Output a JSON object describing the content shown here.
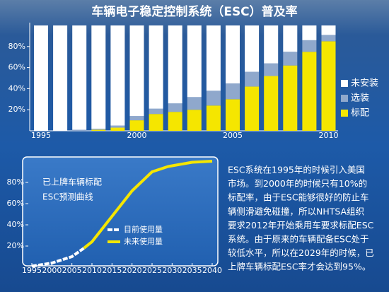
{
  "chart_data": [
    {
      "type": "bar",
      "stacked": true,
      "title": "车辆电子稳定控制系统（ESC）普及率",
      "categories": [
        "1995",
        null,
        null,
        null,
        null,
        "2000",
        null,
        null,
        null,
        null,
        "2005",
        null,
        null,
        null,
        null,
        "2010"
      ],
      "series": [
        {
          "name": "标配",
          "color": "#f5e600",
          "values": [
            0,
            0,
            0,
            1,
            3,
            10,
            16,
            18,
            20,
            24,
            30,
            42,
            52,
            62,
            75,
            85
          ]
        },
        {
          "name": "选装",
          "color": "#8fa8cc",
          "values": [
            0,
            0,
            1,
            1,
            2,
            4,
            5,
            8,
            12,
            14,
            15,
            14,
            12,
            13,
            11,
            6
          ]
        },
        {
          "name": "未安装",
          "color": "#ffffff",
          "values": [
            100,
            100,
            99,
            98,
            95,
            86,
            79,
            74,
            68,
            62,
            55,
            44,
            36,
            25,
            14,
            9
          ]
        }
      ],
      "ylim": [
        0,
        100
      ],
      "yticks": [
        {
          "value": 20,
          "label": "20%"
        },
        {
          "value": 40,
          "label": "40%"
        },
        {
          "value": 60,
          "label": "60%"
        },
        {
          "value": 80,
          "label": "80%"
        }
      ],
      "grid": false,
      "legend": "right"
    },
    {
      "type": "line",
      "annotation": [
        "已上牌车辆标配",
        "ESC预测曲线"
      ],
      "x": [
        1995,
        2000,
        2005,
        2008,
        2010,
        2015,
        2020,
        2025,
        2029,
        2035,
        2040
      ],
      "series": [
        {
          "name": "目前使用量",
          "color": "#ffffff",
          "dashed": true,
          "values": [
            1,
            4,
            10,
            18,
            null,
            null,
            null,
            null,
            null,
            null,
            null
          ]
        },
        {
          "name": "未来使用量",
          "color": "#f5e600",
          "dashed": false,
          "values": [
            null,
            null,
            null,
            18,
            24,
            48,
            72,
            90,
            95,
            99,
            100
          ]
        }
      ],
      "xlim": [
        1995,
        2040
      ],
      "xticks": [
        1995,
        2000,
        2005,
        2010,
        2015,
        2020,
        2025,
        2030,
        2035,
        2040
      ],
      "ylim": [
        0,
        100
      ],
      "yticks": [
        {
          "value": 20,
          "label": "20%"
        },
        {
          "value": 40,
          "label": "40%"
        },
        {
          "value": 60,
          "label": "60%"
        },
        {
          "value": 80,
          "label": "80%"
        }
      ],
      "grid": false
    }
  ],
  "article": {
    "lines": [
      "ESC系统在1995年的时候引入美国",
      "市场。到2000年的时候只有10%的",
      "标配率，由于ESC能够很好的防止车",
      "辆侧滑避免碰撞，所以NHTSA组织",
      "要求2012年开始乘用车要求标配ESC",
      "系统。由于原来的车辆配备ESC处于",
      "较低水平，所以在2029年的时候，已",
      "上牌车辆标配ESC率才会达到95%。"
    ]
  }
}
